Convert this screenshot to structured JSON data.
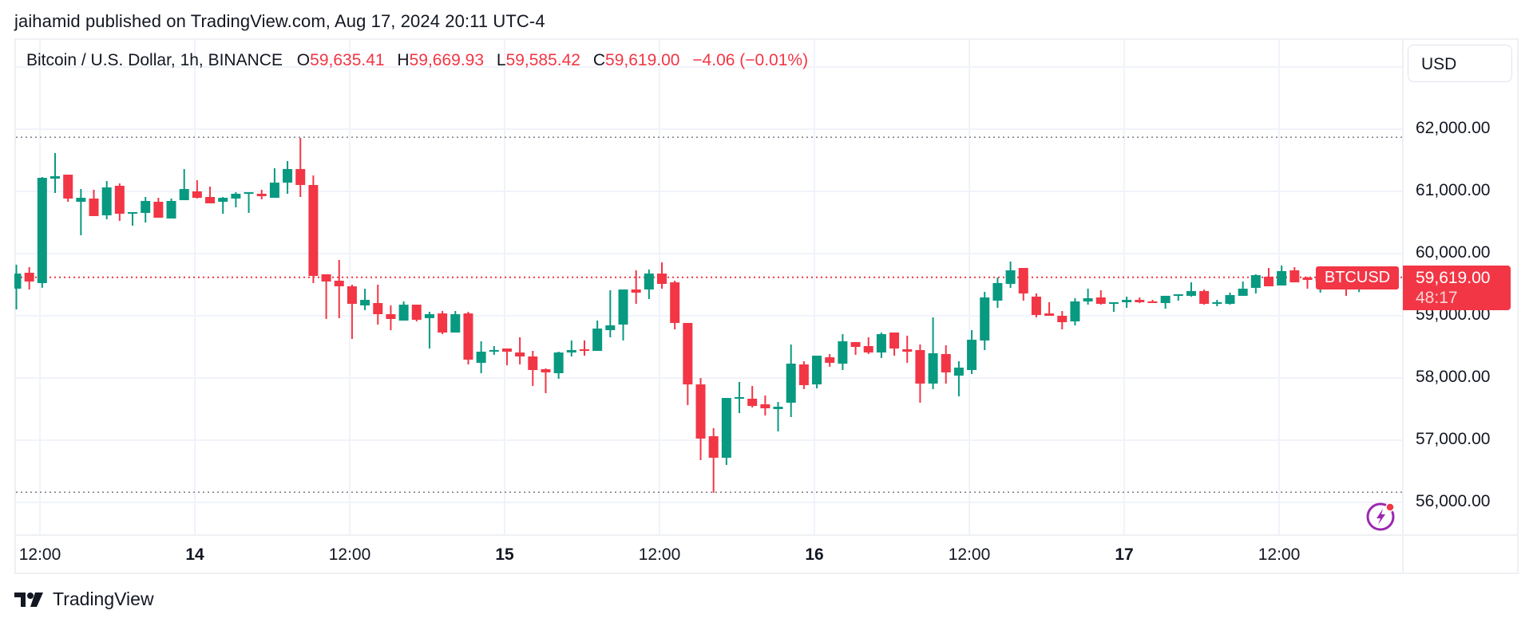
{
  "header": {
    "published": "jaihamid published on TradingView.com, Aug 17, 2024 20:11 UTC-4"
  },
  "legend": {
    "symbol": "Bitcoin / U.S. Dollar, 1h, BINANCE",
    "open_key": "O",
    "open": "59,635.41",
    "high_key": "H",
    "high": "59,669.93",
    "low_key": "L",
    "low": "59,585.42",
    "close_key": "C",
    "close": "59,619.00",
    "change": "−4.06 (−0.01%)"
  },
  "currency_button": "USD",
  "price_axis": {
    "ticks": [
      "62,000.00",
      "61,000.00",
      "60,000.00",
      "59,000.00",
      "58,000.00",
      "57,000.00",
      "56,000.00"
    ]
  },
  "time_axis": {
    "ticks": [
      {
        "label": "12:00",
        "bold": false
      },
      {
        "label": "14",
        "bold": true
      },
      {
        "label": "12:00",
        "bold": false
      },
      {
        "label": "15",
        "bold": true
      },
      {
        "label": "12:00",
        "bold": false
      },
      {
        "label": "16",
        "bold": true
      },
      {
        "label": "12:00",
        "bold": false
      },
      {
        "label": "17",
        "bold": true
      },
      {
        "label": "12:00",
        "bold": false
      }
    ]
  },
  "last_price": {
    "symbol_label": "BTCUSD",
    "price": "59,619.00",
    "countdown": "48:17"
  },
  "footer": {
    "brand": "TradingView"
  },
  "colors": {
    "up": "#089981",
    "down": "#f23645",
    "grid": "#f0f3fa",
    "bolt": "#9c27b0"
  },
  "chart_data": {
    "type": "candlestick",
    "title": "Bitcoin / U.S. Dollar, 1h, BINANCE",
    "xlabel": "",
    "ylabel": "USD",
    "ylim": [
      55700,
      63250
    ],
    "grid": true,
    "timeframe": "1h",
    "x_ticks": [
      "13 12:00",
      "14",
      "14 12:00",
      "15",
      "15 12:00",
      "16",
      "16 12:00",
      "17",
      "17 12:00"
    ],
    "y_ticks": [
      56000,
      57000,
      58000,
      59000,
      60000,
      61000,
      62000
    ],
    "visible_range_high": 61870,
    "visible_range_low": 56164,
    "last_close": 59619.0,
    "candles_ohlc": [
      [
        59436,
        59821,
        59103,
        59679
      ],
      [
        59692,
        59782,
        59423,
        59551
      ],
      [
        59526,
        61230,
        59450,
        61218
      ],
      [
        61205,
        61615,
        60974,
        61244
      ],
      [
        61269,
        61269,
        60833,
        60885
      ],
      [
        60833,
        61038,
        60295,
        60897
      ],
      [
        60885,
        61026,
        60603,
        60603
      ],
      [
        60615,
        61167,
        60551,
        61064
      ],
      [
        61090,
        61128,
        60526,
        60641
      ],
      [
        60654,
        60667,
        60449,
        60667
      ],
      [
        60654,
        60910,
        60500,
        60846
      ],
      [
        60833,
        60897,
        60577,
        60577
      ],
      [
        60564,
        60885,
        60564,
        60846
      ],
      [
        60859,
        61359,
        60859,
        61038
      ],
      [
        61000,
        61179,
        60885,
        60897
      ],
      [
        60910,
        61077,
        60808,
        60808
      ],
      [
        60833,
        60910,
        60641,
        60897
      ],
      [
        60885,
        60987,
        60744,
        60962
      ],
      [
        60974,
        60987,
        60654,
        60987
      ],
      [
        60962,
        61026,
        60872,
        60923
      ],
      [
        60897,
        61372,
        60897,
        61141
      ],
      [
        61141,
        61487,
        60962,
        61359
      ],
      [
        61359,
        61859,
        60910,
        61103
      ],
      [
        61103,
        61256,
        59526,
        59641
      ],
      [
        59667,
        59667,
        58949,
        59551
      ],
      [
        59564,
        59897,
        58962,
        59474
      ],
      [
        59474,
        59500,
        58628,
        59192
      ],
      [
        59167,
        59436,
        59090,
        59256
      ],
      [
        59205,
        59500,
        58859,
        59026
      ],
      [
        59026,
        59167,
        58769,
        58949
      ],
      [
        58923,
        59231,
        58923,
        59179
      ],
      [
        59179,
        59179,
        58910,
        58936
      ],
      [
        58962,
        59064,
        58474,
        59026
      ],
      [
        59038,
        59077,
        58705,
        58731
      ],
      [
        58731,
        59077,
        58731,
        59026
      ],
      [
        59038,
        59064,
        58218,
        58295
      ],
      [
        58244,
        58590,
        58077,
        58423
      ],
      [
        58436,
        58513,
        58372,
        58449
      ],
      [
        58474,
        58474,
        58205,
        58423
      ],
      [
        58410,
        58654,
        58218,
        58346
      ],
      [
        58346,
        58436,
        57872,
        58128
      ],
      [
        58141,
        58154,
        57756,
        58090
      ],
      [
        58077,
        58423,
        57987,
        58410
      ],
      [
        58410,
        58603,
        58346,
        58449
      ],
      [
        58462,
        58603,
        58359,
        58436
      ],
      [
        58436,
        58923,
        58436,
        58795
      ],
      [
        58769,
        59410,
        58654,
        58846
      ],
      [
        58859,
        59423,
        58603,
        59423
      ],
      [
        59423,
        59731,
        59192,
        59372
      ],
      [
        59423,
        59744,
        59269,
        59679
      ],
      [
        59679,
        59859,
        59436,
        59513
      ],
      [
        59538,
        59564,
        58782,
        58885
      ],
      [
        58885,
        58885,
        57564,
        57897
      ],
      [
        57897,
        58000,
        56679,
        57026
      ],
      [
        57064,
        57192,
        56154,
        56718
      ],
      [
        56718,
        57679,
        56603,
        57679
      ],
      [
        57667,
        57936,
        57436,
        57692
      ],
      [
        57667,
        57872,
        57526,
        57551
      ],
      [
        57577,
        57718,
        57397,
        57513
      ],
      [
        57500,
        57615,
        57141,
        57538
      ],
      [
        57603,
        58538,
        57372,
        58231
      ],
      [
        58218,
        58269,
        57821,
        57885
      ],
      [
        57897,
        58359,
        57833,
        58359
      ],
      [
        58333,
        58385,
        58180,
        58244
      ],
      [
        58231,
        58705,
        58128,
        58590
      ],
      [
        58577,
        58577,
        58372,
        58500
      ],
      [
        58513,
        58654,
        58385,
        58410
      ],
      [
        58410,
        58731,
        58321,
        58705
      ],
      [
        58731,
        58731,
        58359,
        58474
      ],
      [
        58462,
        58680,
        58244,
        58423
      ],
      [
        58449,
        58538,
        57603,
        57910
      ],
      [
        57910,
        58974,
        57821,
        58397
      ],
      [
        58385,
        58526,
        57910,
        58090
      ],
      [
        58038,
        58269,
        57705,
        58167
      ],
      [
        58128,
        58769,
        58064,
        58615
      ],
      [
        58603,
        59385,
        58449,
        59295
      ],
      [
        59244,
        59615,
        59128,
        59526
      ],
      [
        59513,
        59872,
        59449,
        59731
      ],
      [
        59769,
        59769,
        59244,
        59359
      ],
      [
        59308,
        59359,
        58974,
        59013
      ],
      [
        59038,
        59218,
        59000,
        59000
      ],
      [
        59000,
        59077,
        58782,
        58897
      ],
      [
        58910,
        59282,
        58846,
        59231
      ],
      [
        59231,
        59436,
        59179,
        59282
      ],
      [
        59295,
        59410,
        59179,
        59192
      ],
      [
        59205,
        59218,
        59064,
        59218
      ],
      [
        59218,
        59308,
        59128,
        59256
      ],
      [
        59256,
        59295,
        59205,
        59218
      ],
      [
        59231,
        59256,
        59205,
        59205
      ],
      [
        59205,
        59321,
        59115,
        59321
      ],
      [
        59321,
        59346,
        59244,
        59346
      ],
      [
        59321,
        59538,
        59308,
        59397
      ],
      [
        59397,
        59423,
        59179,
        59192
      ],
      [
        59192,
        59256,
        59154,
        59218
      ],
      [
        59192,
        59372,
        59179,
        59333
      ],
      [
        59321,
        59551,
        59321,
        59436
      ],
      [
        59449,
        59667,
        59359,
        59654
      ],
      [
        59628,
        59769,
        59474,
        59474
      ],
      [
        59487,
        59808,
        59487,
        59718
      ],
      [
        59731,
        59782,
        59538,
        59538
      ],
      [
        59615,
        59628,
        59436,
        59577
      ],
      [
        59551,
        59640,
        59372,
        59615
      ],
      [
        59615,
        59650,
        59450,
        59590
      ],
      [
        59640,
        59660,
        59320,
        59560
      ],
      [
        59560,
        59690,
        59380,
        59636
      ],
      [
        59635.41,
        59669.93,
        59585.42,
        59619.0
      ]
    ]
  }
}
